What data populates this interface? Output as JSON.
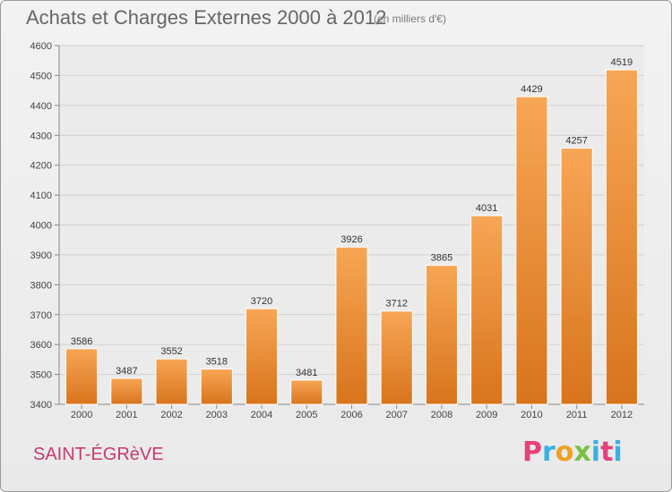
{
  "header": {
    "title": "Achats et Charges Externes 2000 à 2012",
    "subtitle": "(en milliers d'€)"
  },
  "footer": {
    "commune": "SAINT-ÉGRèVE",
    "brand": "Proxiti",
    "brand_colors": [
      "#e8407a",
      "#3ab0e2",
      "#f0a020",
      "#7ac043",
      "#3ab0e2",
      "#e8407a",
      "#3ab0e2"
    ]
  },
  "chart_data": {
    "type": "bar",
    "categories": [
      "2000",
      "2001",
      "2002",
      "2003",
      "2004",
      "2005",
      "2006",
      "2007",
      "2008",
      "2009",
      "2010",
      "2011",
      "2012"
    ],
    "values": [
      3586,
      3487,
      3552,
      3518,
      3720,
      3481,
      3926,
      3712,
      3865,
      4031,
      4429,
      4257,
      4519
    ],
    "ylim": [
      3400,
      4600
    ],
    "yticks": [
      3400,
      3500,
      3600,
      3700,
      3800,
      3900,
      4000,
      4100,
      4200,
      4300,
      4400,
      4500,
      4600
    ],
    "grid": true,
    "bar_color_top": "#f7a655",
    "bar_color_bottom": "#d8741c",
    "title": "Achats et Charges Externes 2000 à 2012",
    "xlabel": "",
    "ylabel": ""
  }
}
